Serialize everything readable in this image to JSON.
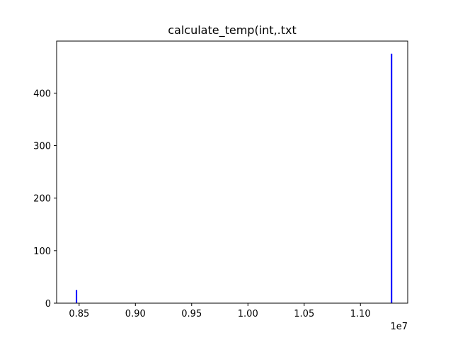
{
  "chart_data": {
    "type": "bar",
    "title": "calculate_temp(int,.txt",
    "xlabel": "",
    "ylabel": "",
    "x_offset_label": "1e7",
    "x_scale": 10000000,
    "xlim": [
      8300000,
      11420000
    ],
    "ylim": [
      0,
      499
    ],
    "x_ticks": [
      {
        "value": 8500000,
        "label": "0.85"
      },
      {
        "value": 9000000,
        "label": "0.90"
      },
      {
        "value": 9500000,
        "label": "0.95"
      },
      {
        "value": 10000000,
        "label": "1.00"
      },
      {
        "value": 10500000,
        "label": "1.05"
      },
      {
        "value": 11000000,
        "label": "1.10"
      }
    ],
    "y_ticks": [
      {
        "value": 0,
        "label": "0"
      },
      {
        "value": 100,
        "label": "100"
      },
      {
        "value": 200,
        "label": "200"
      },
      {
        "value": 300,
        "label": "300"
      },
      {
        "value": 400,
        "label": "400"
      }
    ],
    "bar_width": 13000,
    "bars": [
      {
        "x": 8470000,
        "value": 25
      },
      {
        "x": 11270000,
        "value": 475
      }
    ],
    "bar_color": "#0000ff",
    "grid": false
  }
}
